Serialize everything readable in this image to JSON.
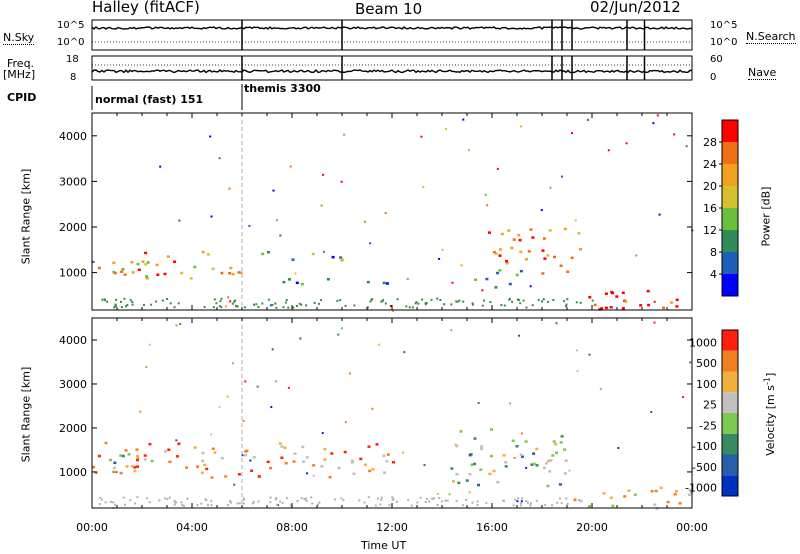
{
  "header": {
    "station": "Halley (fitACF)",
    "beam": "Beam 10",
    "date": "02/Jun/2012"
  },
  "side_labels": {
    "nsky": "N.Sky",
    "nsearch": "N.Search",
    "freq": "Freq.",
    "mhz": "[MHz]",
    "nave": "Nave",
    "cpid": "CPID",
    "scale_hi_left": "10^5",
    "scale_lo_left": "10^0",
    "scale_hi_right": "10^5",
    "scale_lo_right": "10^0",
    "freq_hi": "18",
    "freq_lo": "8",
    "nave_hi": "60",
    "nave_lo": "0"
  },
  "cpid_segments": [
    {
      "label": "normal (fast) 151",
      "start_hour": 0.0,
      "end_hour": 6.0
    },
    {
      "label": "themis 3300",
      "start_hour": 6.0,
      "end_hour": 24.0
    }
  ],
  "gap_markers_hours": [
    6.0,
    10.0,
    18.4,
    18.8,
    19.2,
    21.4,
    22.1
  ],
  "time_axis": {
    "label": "Time UT",
    "ticks": [
      "00:00",
      "04:00",
      "08:00",
      "12:00",
      "16:00",
      "20:00",
      "00:00"
    ],
    "range_hours": [
      0,
      24
    ]
  },
  "chart_data": [
    {
      "type": "heatmap",
      "name": "power",
      "ylabel": "Slant Range [km]",
      "yticks": [
        "1000",
        "2000",
        "3000",
        "4000"
      ],
      "ylim": [
        180,
        4500
      ],
      "colorbar_label": "Power [dB]",
      "colorbar_ticks": [
        "4",
        "8",
        "12",
        "16",
        "20",
        "24",
        "28"
      ],
      "colorbar_range": [
        0,
        32
      ],
      "colorbar_colors": [
        "#0000ff",
        "#1f5fb8",
        "#2f8c5a",
        "#6bbf3a",
        "#d6c030",
        "#f2a020",
        "#f07018",
        "#ff0000"
      ],
      "features": [
        {
          "t0": 0.0,
          "t1": 6.0,
          "r0": 900,
          "r1": 1500,
          "level": 0.65
        },
        {
          "t0": 0.8,
          "t1": 3.0,
          "r0": 950,
          "r1": 1150,
          "level": 0.95
        },
        {
          "t0": 6.0,
          "t1": 10.8,
          "r0": 1300,
          "r1": 1500,
          "level": 0.35
        },
        {
          "t0": 7.4,
          "t1": 12.0,
          "r0": 700,
          "r1": 900,
          "level": 0.2
        },
        {
          "t0": 15.2,
          "t1": 17.5,
          "r0": 700,
          "r1": 1100,
          "level": 0.3
        },
        {
          "t0": 15.8,
          "t1": 19.5,
          "r0": 1000,
          "r1": 2000,
          "level": 0.8
        },
        {
          "t0": 19.0,
          "t1": 24.0,
          "r0": 200,
          "r1": 700,
          "level": 0.95
        }
      ]
    },
    {
      "type": "heatmap",
      "name": "velocity",
      "ylabel": "Slant Range [km]",
      "yticks": [
        "1000",
        "2000",
        "3000",
        "4000"
      ],
      "ylim": [
        180,
        4500
      ],
      "colorbar_label": "Velocity [m s-1]",
      "colorbar_ticks": [
        "1000",
        "500",
        "100",
        "25",
        "-25",
        "-100",
        "-500",
        "-1000"
      ],
      "colorbar_colors": [
        "#0030c0",
        "#2860a8",
        "#3a8a60",
        "#7cc850",
        "#c0c0c0",
        "#f0b040",
        "#f08020",
        "#ff2010"
      ],
      "features": [
        {
          "t0": 0.0,
          "t1": 12.0,
          "r0": 900,
          "r1": 1700,
          "level": 0.75
        },
        {
          "t0": 0.0,
          "t1": 2.5,
          "r0": 1150,
          "r1": 1450,
          "level": 0.35
        },
        {
          "t0": 14.3,
          "t1": 19.0,
          "r0": 700,
          "r1": 2000,
          "level": 0.45
        },
        {
          "t0": 19.0,
          "t1": 24.0,
          "r0": 200,
          "r1": 700,
          "level": 0.6
        }
      ]
    }
  ]
}
